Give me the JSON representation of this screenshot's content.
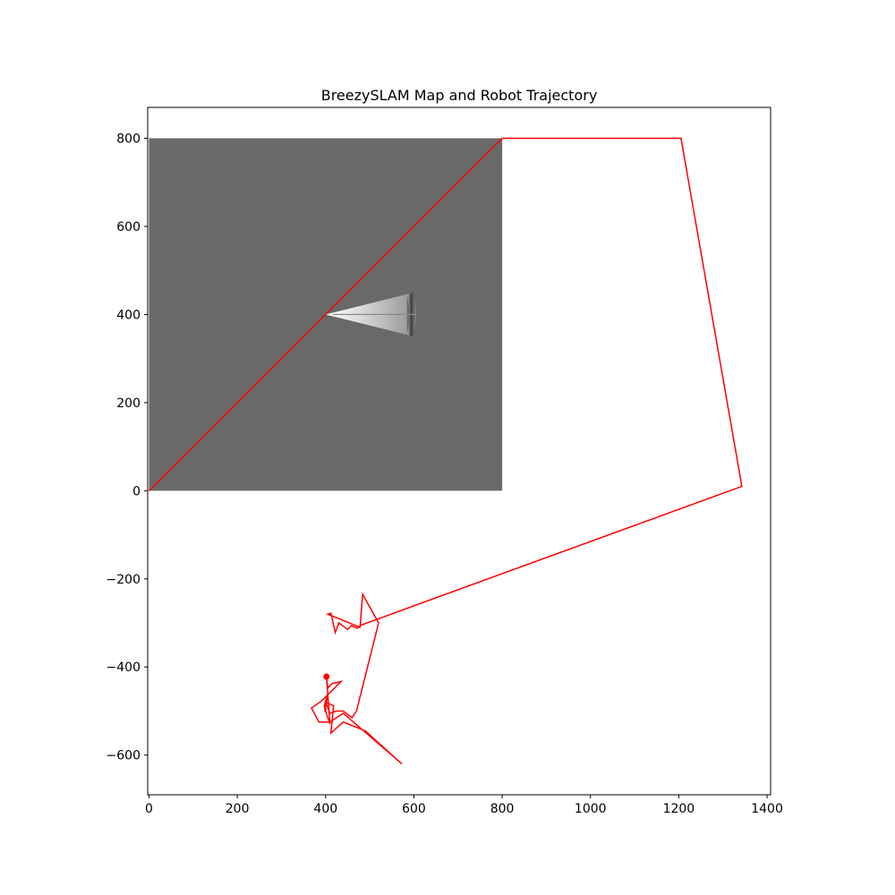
{
  "chart_data": {
    "type": "line",
    "title": "BreezySLAM Map and Robot Trajectory",
    "xlabel": "",
    "ylabel": "",
    "xlim": [
      -3,
      1408
    ],
    "ylim": [
      -690,
      870
    ],
    "x_ticks": [
      0,
      200,
      400,
      600,
      800,
      1000,
      1200,
      1400
    ],
    "y_ticks": [
      -600,
      -400,
      -200,
      0,
      200,
      400,
      600,
      800
    ],
    "x_tick_labels": [
      "0",
      "200",
      "400",
      "600",
      "800",
      "1000",
      "1200",
      "1400"
    ],
    "y_tick_labels": [
      "−600",
      "−400",
      "−200",
      "0",
      "200",
      "400",
      "600",
      "800"
    ],
    "grid": false,
    "map_image": {
      "extent": [
        0,
        800,
        0,
        800
      ],
      "background_color": "#696969",
      "scan_origin": [
        400,
        400
      ],
      "scan_half_angle_deg": 14,
      "scan_range": [
        190,
        205
      ],
      "scan_center_y": 400
    },
    "series": [
      {
        "color": "#ff0000",
        "line_width": 1.5,
        "points": [
          [
            0,
            0
          ],
          [
            400,
            400
          ],
          [
            800,
            800
          ],
          [
            1205,
            800
          ],
          [
            1343,
            10
          ],
          [
            480,
            -305
          ],
          [
            472,
            -312
          ],
          [
            458,
            -306
          ],
          [
            450,
            -315
          ],
          [
            430,
            -300
          ],
          [
            422,
            -322
          ],
          [
            412,
            -278
          ],
          [
            405,
            -280
          ],
          [
            478,
            -310
          ],
          [
            484,
            -235
          ],
          [
            520,
            -300
          ],
          [
            490,
            -420
          ],
          [
            470,
            -500
          ],
          [
            460,
            -515
          ],
          [
            440,
            -500
          ],
          [
            425,
            -500
          ],
          [
            410,
            -505
          ],
          [
            400,
            -480
          ],
          [
            418,
            -488
          ],
          [
            412,
            -550
          ],
          [
            440,
            -525
          ],
          [
            490,
            -545
          ],
          [
            573,
            -620
          ],
          [
            440,
            -505
          ],
          [
            425,
            -515
          ],
          [
            410,
            -525
          ],
          [
            385,
            -525
          ],
          [
            368,
            -493
          ],
          [
            390,
            -478
          ],
          [
            398,
            -470
          ],
          [
            435,
            -433
          ],
          [
            414,
            -438
          ],
          [
            405,
            -448
          ],
          [
            402,
            -422
          ],
          [
            410,
            -530
          ],
          [
            400,
            -500
          ],
          [
            397,
            -488
          ],
          [
            405,
            -460
          ],
          [
            398,
            -502
          ],
          [
            402,
            -494
          ]
        ]
      }
    ],
    "markers": [
      {
        "x": 402,
        "y": -422,
        "color": "#ff0000"
      }
    ]
  }
}
